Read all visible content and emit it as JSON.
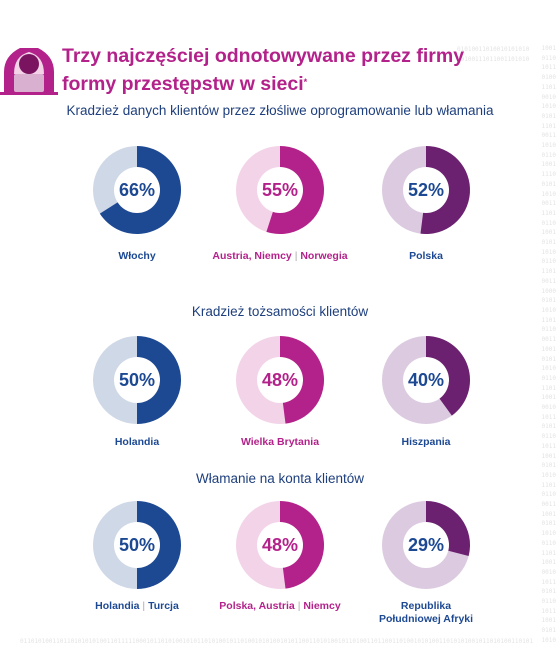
{
  "title": {
    "line1": "Trzy najczęściej odnotowywane przez firmy",
    "line2": "formy przestępstw w sieci",
    "mark": "*"
  },
  "decor": {
    "binary_top": "01010011010010101010",
    "binary_top2": "10100111011001101010",
    "binary_bottom": "0110101001101101010101001101111100010110101001010110101001011010010101001010110011010100101101001101100110100101010011010101001011010100110101",
    "binary_column": "1001\n0110\n1011\n0100\n1101\n0010\n1010\n0101\n1101\n0011\n1010\n0110\n1001\n1110\n0101\n1010\n0011\n1101\n0110\n1001\n0101\n1010\n0110\n1101\n0011\n1000\n0101\n1010\n1101\n0110\n0011\n1001\n0101\n1010\n0110\n1101\n1001\n0010\n1011\n0101\n0110\n1011\n1001\n0101\n1010\n1101\n0110\n0011\n1001\n0101\n1010\n0110\n1101\n1001\n0010\n1011\n0101\n0110\n1011\n1001\n0101\n1010"
  },
  "colors": {
    "blue": "#1d4993",
    "blue_light": "#cfd8e7",
    "magenta": "#b3228a",
    "magenta_light": "#f3d3e8",
    "purple": "#6b2170",
    "purple_light": "#dccbe0"
  },
  "chart_data": [
    {
      "type": "pie",
      "title": "Kradzież danych klientów przez złośliwe oprogramowanie lub włamania",
      "categories": [
        "Włochy",
        "Austria, Niemcy, Norwegia",
        "Polska"
      ],
      "values": [
        66,
        55,
        52
      ],
      "value_labels": [
        "66%",
        "55%",
        "52%"
      ],
      "category_parts": [
        [
          "Włochy"
        ],
        [
          "Austria",
          "Niemcy",
          "Norwegia"
        ],
        [
          "Polska"
        ]
      ],
      "separators": [
        [],
        [
          ", ",
          " | "
        ],
        []
      ]
    },
    {
      "type": "pie",
      "title": "Kradzież tożsamości klientów",
      "categories": [
        "Holandia",
        "Wielka Brytania",
        "Hiszpania"
      ],
      "values": [
        50,
        48,
        40
      ],
      "value_labels": [
        "50%",
        "48%",
        "40%"
      ],
      "category_parts": [
        [
          "Holandia"
        ],
        [
          "Wielka Brytania"
        ],
        [
          "Hiszpania"
        ]
      ],
      "separators": [
        [],
        [],
        []
      ]
    },
    {
      "type": "pie",
      "title": "Włamanie na konta klientów",
      "categories": [
        "Holandia, Turcja",
        "Polska, Austria, Niemcy",
        "Republika Południowej Afryki"
      ],
      "values": [
        50,
        48,
        29
      ],
      "value_labels": [
        "50%",
        "48%",
        "29%"
      ],
      "category_parts": [
        [
          "Holandia",
          "Turcja"
        ],
        [
          "Polska",
          "Austria",
          "Niemcy"
        ],
        [
          "Republika",
          "Południowej Afryki"
        ]
      ],
      "separators": [
        [
          " | "
        ],
        [
          ", ",
          " | "
        ],
        [
          "\n"
        ]
      ]
    }
  ]
}
